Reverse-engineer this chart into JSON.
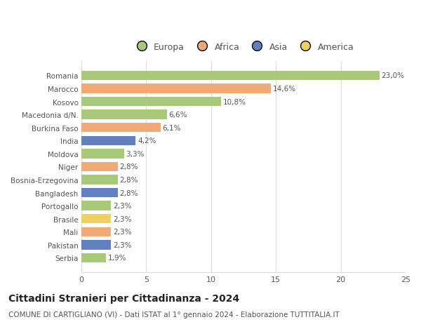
{
  "categories": [
    "Romania",
    "Marocco",
    "Kosovo",
    "Macedonia d/N.",
    "Burkina Faso",
    "India",
    "Moldova",
    "Niger",
    "Bosnia-Erzegovina",
    "Bangladesh",
    "Portogallo",
    "Brasile",
    "Mali",
    "Pakistan",
    "Serbia"
  ],
  "values": [
    23.0,
    14.6,
    10.8,
    6.6,
    6.1,
    4.2,
    3.3,
    2.8,
    2.8,
    2.8,
    2.3,
    2.3,
    2.3,
    2.3,
    1.9
  ],
  "labels": [
    "23,0%",
    "14,6%",
    "10,8%",
    "6,6%",
    "6,1%",
    "4,2%",
    "3,3%",
    "2,8%",
    "2,8%",
    "2,8%",
    "2,3%",
    "2,3%",
    "2,3%",
    "2,3%",
    "1,9%"
  ],
  "continents": [
    "Europa",
    "Africa",
    "Europa",
    "Europa",
    "Africa",
    "Asia",
    "Europa",
    "Africa",
    "Europa",
    "Asia",
    "Europa",
    "America",
    "Africa",
    "Asia",
    "Europa"
  ],
  "colors": {
    "Europa": "#a8c87a",
    "Africa": "#f0aa78",
    "Asia": "#6080c0",
    "America": "#f0d060"
  },
  "legend_labels": [
    "Europa",
    "Africa",
    "Asia",
    "America"
  ],
  "legend_colors": [
    "#a8c87a",
    "#f0aa78",
    "#6080c0",
    "#f0d060"
  ],
  "xlim": [
    0,
    25
  ],
  "xticks": [
    0,
    5,
    10,
    15,
    20,
    25
  ],
  "title": "Cittadini Stranieri per Cittadinanza - 2024",
  "subtitle": "COMUNE DI CARTIGLIANO (VI) - Dati ISTAT al 1° gennaio 2024 - Elaborazione TUTTITALIA.IT",
  "background_color": "#ffffff",
  "grid_color": "#dddddd",
  "bar_height": 0.72,
  "label_fontsize": 7.5,
  "ytick_fontsize": 7.5,
  "xtick_fontsize": 8,
  "title_fontsize": 10,
  "subtitle_fontsize": 7.5
}
